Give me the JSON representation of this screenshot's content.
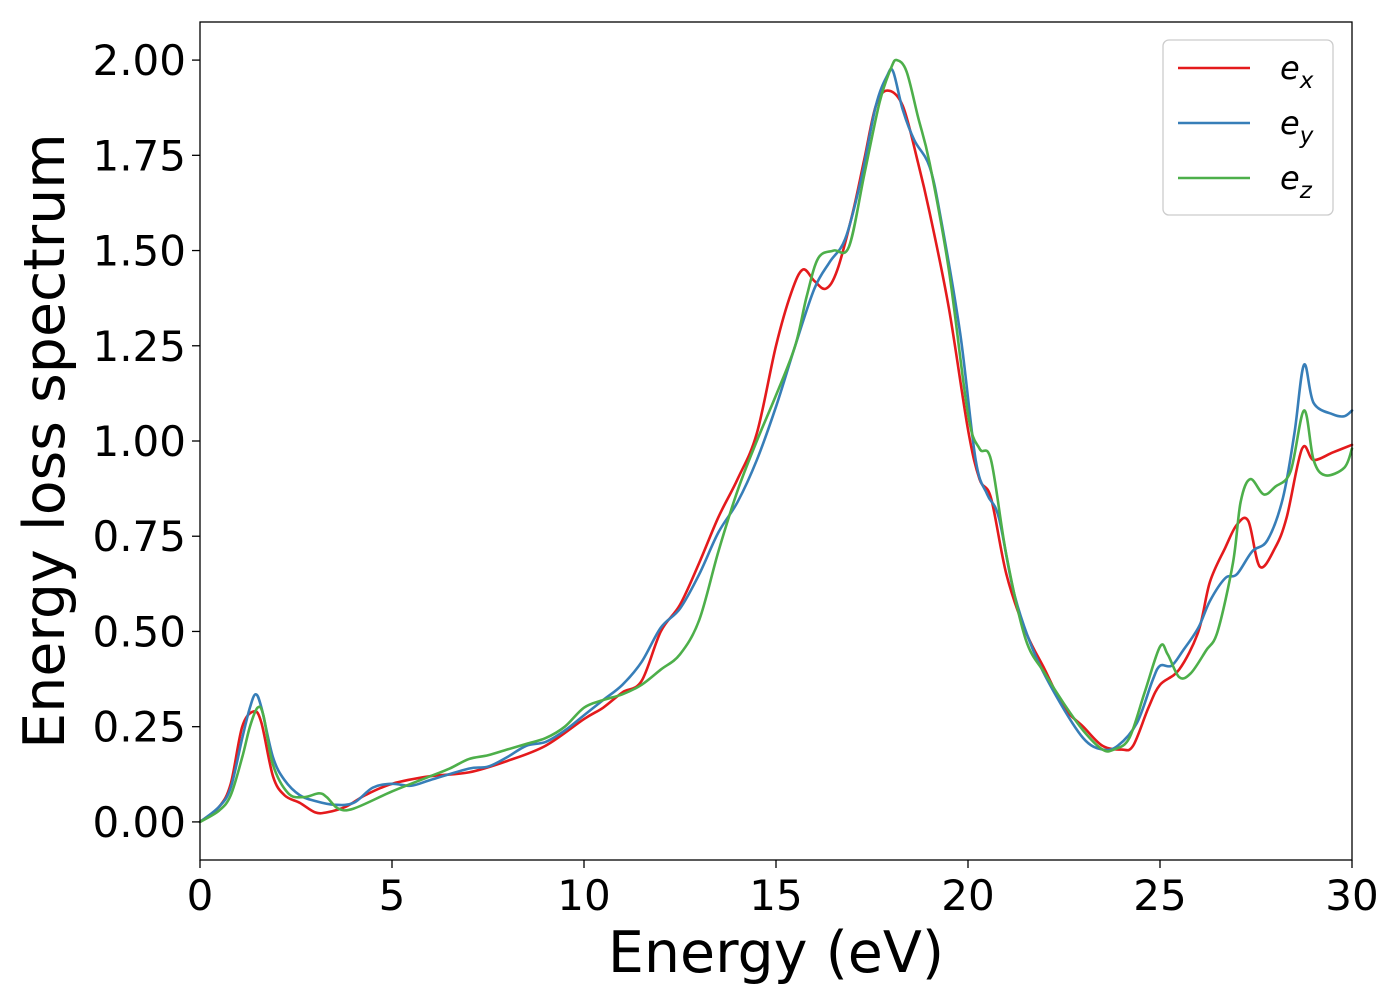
{
  "chart_data": {
    "type": "line",
    "title": "",
    "xlabel": "Energy (eV)",
    "ylabel": "Energy loss spectrum",
    "xlim": [
      0,
      30
    ],
    "ylim": [
      -0.1,
      2.1
    ],
    "xticks": [
      0,
      5,
      10,
      15,
      20,
      25,
      30
    ],
    "xtick_labels": [
      "0",
      "5",
      "10",
      "15",
      "20",
      "25",
      "30"
    ],
    "yticks": [
      0.0,
      0.25,
      0.5,
      0.75,
      1.0,
      1.25,
      1.5,
      1.75,
      2.0
    ],
    "ytick_labels": [
      "0.00",
      "0.25",
      "0.50",
      "0.75",
      "1.00",
      "1.25",
      "1.50",
      "1.75",
      "2.00"
    ],
    "grid": false,
    "legend_position": "top-right",
    "series": [
      {
        "name": "e",
        "subscript": "x",
        "color": "#e41a1c",
        "points": [
          [
            0,
            0
          ],
          [
            0.5,
            0.04
          ],
          [
            0.8,
            0.1
          ],
          [
            1.1,
            0.25
          ],
          [
            1.4,
            0.29
          ],
          [
            1.6,
            0.26
          ],
          [
            1.9,
            0.12
          ],
          [
            2.2,
            0.07
          ],
          [
            2.6,
            0.05
          ],
          [
            3.0,
            0.025
          ],
          [
            3.3,
            0.025
          ],
          [
            3.8,
            0.04
          ],
          [
            4.3,
            0.07
          ],
          [
            5.0,
            0.1
          ],
          [
            6.0,
            0.12
          ],
          [
            7.0,
            0.13
          ],
          [
            8.0,
            0.16
          ],
          [
            9.0,
            0.2
          ],
          [
            10.0,
            0.27
          ],
          [
            10.5,
            0.3
          ],
          [
            11.0,
            0.34
          ],
          [
            11.5,
            0.37
          ],
          [
            12.0,
            0.5
          ],
          [
            12.5,
            0.57
          ],
          [
            13.0,
            0.68
          ],
          [
            13.5,
            0.8
          ],
          [
            14.0,
            0.9
          ],
          [
            14.5,
            1.02
          ],
          [
            15.0,
            1.25
          ],
          [
            15.4,
            1.39
          ],
          [
            15.7,
            1.45
          ],
          [
            16.0,
            1.42
          ],
          [
            16.3,
            1.4
          ],
          [
            16.6,
            1.45
          ],
          [
            17.0,
            1.6
          ],
          [
            17.3,
            1.74
          ],
          [
            17.6,
            1.88
          ],
          [
            17.9,
            1.92
          ],
          [
            18.3,
            1.88
          ],
          [
            18.7,
            1.73
          ],
          [
            19.0,
            1.6
          ],
          [
            19.5,
            1.35
          ],
          [
            20.0,
            1.03
          ],
          [
            20.3,
            0.9
          ],
          [
            20.6,
            0.85
          ],
          [
            21.0,
            0.65
          ],
          [
            21.5,
            0.5
          ],
          [
            22.0,
            0.4
          ],
          [
            22.5,
            0.3
          ],
          [
            23.0,
            0.25
          ],
          [
            23.5,
            0.2
          ],
          [
            24.0,
            0.19
          ],
          [
            24.3,
            0.2
          ],
          [
            24.7,
            0.3
          ],
          [
            25.0,
            0.36
          ],
          [
            25.5,
            0.4
          ],
          [
            26.0,
            0.5
          ],
          [
            26.3,
            0.63
          ],
          [
            26.7,
            0.72
          ],
          [
            27.0,
            0.78
          ],
          [
            27.3,
            0.79
          ],
          [
            27.6,
            0.67
          ],
          [
            28.0,
            0.72
          ],
          [
            28.3,
            0.8
          ],
          [
            28.7,
            0.98
          ],
          [
            29.0,
            0.95
          ],
          [
            29.5,
            0.97
          ],
          [
            30.0,
            0.99
          ]
        ]
      },
      {
        "name": "e",
        "subscript": "y",
        "color": "#377eb8",
        "points": [
          [
            0,
            0
          ],
          [
            0.5,
            0.04
          ],
          [
            0.8,
            0.09
          ],
          [
            1.1,
            0.22
          ],
          [
            1.3,
            0.3
          ],
          [
            1.45,
            0.335
          ],
          [
            1.6,
            0.3
          ],
          [
            1.9,
            0.17
          ],
          [
            2.2,
            0.11
          ],
          [
            2.6,
            0.07
          ],
          [
            3.0,
            0.055
          ],
          [
            3.5,
            0.045
          ],
          [
            4.0,
            0.05
          ],
          [
            4.5,
            0.09
          ],
          [
            5.0,
            0.1
          ],
          [
            5.5,
            0.095
          ],
          [
            6.0,
            0.11
          ],
          [
            7.0,
            0.14
          ],
          [
            7.5,
            0.145
          ],
          [
            8.0,
            0.17
          ],
          [
            8.5,
            0.2
          ],
          [
            9.0,
            0.21
          ],
          [
            9.5,
            0.24
          ],
          [
            10.0,
            0.28
          ],
          [
            10.5,
            0.32
          ],
          [
            11.0,
            0.36
          ],
          [
            11.5,
            0.42
          ],
          [
            12.0,
            0.51
          ],
          [
            12.5,
            0.56
          ],
          [
            13.0,
            0.65
          ],
          [
            13.5,
            0.76
          ],
          [
            14.0,
            0.84
          ],
          [
            14.5,
            0.95
          ],
          [
            15.0,
            1.09
          ],
          [
            15.5,
            1.25
          ],
          [
            16.0,
            1.4
          ],
          [
            16.4,
            1.47
          ],
          [
            16.8,
            1.53
          ],
          [
            17.2,
            1.68
          ],
          [
            17.6,
            1.88
          ],
          [
            17.9,
            1.96
          ],
          [
            18.05,
            1.97
          ],
          [
            18.3,
            1.87
          ],
          [
            18.6,
            1.79
          ],
          [
            19.0,
            1.72
          ],
          [
            19.3,
            1.58
          ],
          [
            19.8,
            1.28
          ],
          [
            20.2,
            0.95
          ],
          [
            20.5,
            0.86
          ],
          [
            20.8,
            0.8
          ],
          [
            21.2,
            0.6
          ],
          [
            21.7,
            0.45
          ],
          [
            22.3,
            0.33
          ],
          [
            23.0,
            0.22
          ],
          [
            23.5,
            0.19
          ],
          [
            23.9,
            0.2
          ],
          [
            24.4,
            0.26
          ],
          [
            24.8,
            0.37
          ],
          [
            25.0,
            0.41
          ],
          [
            25.3,
            0.41
          ],
          [
            25.6,
            0.45
          ],
          [
            26.0,
            0.51
          ],
          [
            26.3,
            0.58
          ],
          [
            26.7,
            0.64
          ],
          [
            27.0,
            0.65
          ],
          [
            27.4,
            0.71
          ],
          [
            27.8,
            0.74
          ],
          [
            28.2,
            0.85
          ],
          [
            28.5,
            1.02
          ],
          [
            28.75,
            1.2
          ],
          [
            29.0,
            1.1
          ],
          [
            29.5,
            1.07
          ],
          [
            29.8,
            1.065
          ],
          [
            30.0,
            1.08
          ]
        ]
      },
      {
        "name": "e",
        "subscript": "z",
        "color": "#4daf4a",
        "points": [
          [
            0,
            0
          ],
          [
            0.5,
            0.03
          ],
          [
            0.8,
            0.07
          ],
          [
            1.1,
            0.17
          ],
          [
            1.3,
            0.25
          ],
          [
            1.5,
            0.3
          ],
          [
            1.65,
            0.28
          ],
          [
            1.9,
            0.15
          ],
          [
            2.3,
            0.075
          ],
          [
            2.7,
            0.065
          ],
          [
            3.1,
            0.075
          ],
          [
            3.3,
            0.065
          ],
          [
            3.6,
            0.035
          ],
          [
            4.0,
            0.035
          ],
          [
            5.0,
            0.08
          ],
          [
            6.0,
            0.12
          ],
          [
            6.5,
            0.14
          ],
          [
            7.0,
            0.165
          ],
          [
            7.5,
            0.175
          ],
          [
            8.0,
            0.19
          ],
          [
            8.5,
            0.205
          ],
          [
            9.0,
            0.22
          ],
          [
            9.5,
            0.25
          ],
          [
            10.0,
            0.3
          ],
          [
            10.5,
            0.32
          ],
          [
            11.0,
            0.335
          ],
          [
            11.5,
            0.36
          ],
          [
            12.0,
            0.4
          ],
          [
            12.5,
            0.44
          ],
          [
            13.0,
            0.53
          ],
          [
            13.5,
            0.71
          ],
          [
            14.0,
            0.87
          ],
          [
            14.5,
            1.0
          ],
          [
            15.0,
            1.12
          ],
          [
            15.5,
            1.25
          ],
          [
            15.8,
            1.38
          ],
          [
            16.1,
            1.48
          ],
          [
            16.5,
            1.5
          ],
          [
            16.9,
            1.51
          ],
          [
            17.3,
            1.7
          ],
          [
            17.7,
            1.89
          ],
          [
            18.0,
            1.98
          ],
          [
            18.15,
            2.0
          ],
          [
            18.4,
            1.97
          ],
          [
            18.7,
            1.85
          ],
          [
            19.0,
            1.73
          ],
          [
            19.5,
            1.45
          ],
          [
            20.0,
            1.07
          ],
          [
            20.3,
            0.98
          ],
          [
            20.6,
            0.95
          ],
          [
            21.0,
            0.7
          ],
          [
            21.5,
            0.48
          ],
          [
            22.0,
            0.39
          ],
          [
            22.5,
            0.31
          ],
          [
            23.0,
            0.24
          ],
          [
            23.5,
            0.19
          ],
          [
            23.8,
            0.19
          ],
          [
            24.2,
            0.22
          ],
          [
            24.6,
            0.34
          ],
          [
            25.0,
            0.46
          ],
          [
            25.2,
            0.44
          ],
          [
            25.5,
            0.38
          ],
          [
            25.8,
            0.39
          ],
          [
            26.2,
            0.45
          ],
          [
            26.5,
            0.5
          ],
          [
            26.9,
            0.68
          ],
          [
            27.1,
            0.84
          ],
          [
            27.35,
            0.9
          ],
          [
            27.7,
            0.86
          ],
          [
            28.0,
            0.88
          ],
          [
            28.4,
            0.92
          ],
          [
            28.75,
            1.08
          ],
          [
            29.0,
            0.95
          ],
          [
            29.3,
            0.91
          ],
          [
            29.8,
            0.93
          ],
          [
            30.0,
            0.98
          ]
        ]
      }
    ]
  }
}
